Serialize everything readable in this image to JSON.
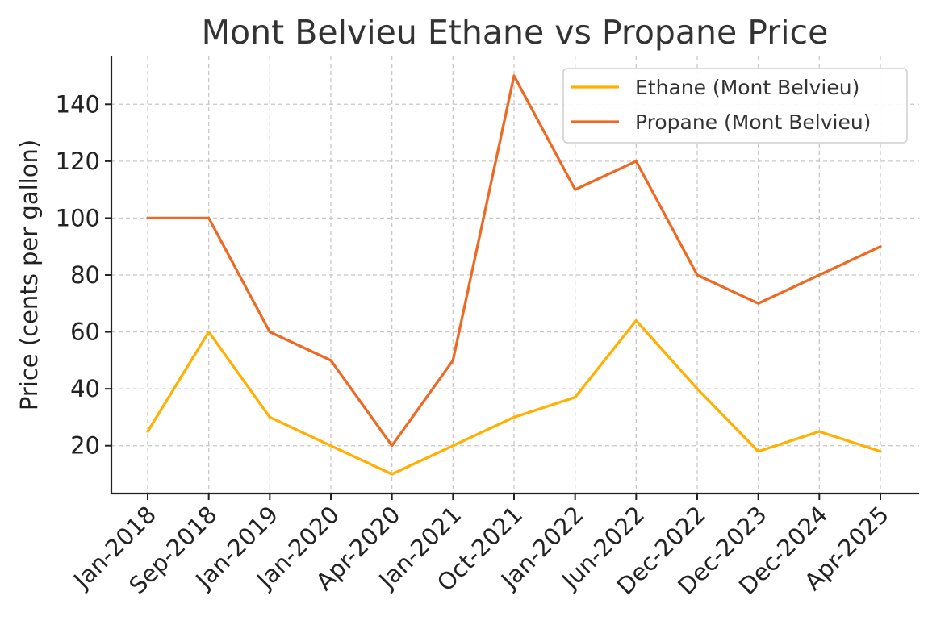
{
  "chart_data": {
    "type": "line",
    "title": "Mont Belvieu Ethane vs Propane Price",
    "xlabel": "",
    "ylabel": "Price (cents per gallon)",
    "categories": [
      "Jan-2018",
      "Sep-2018",
      "Jan-2019",
      "Jan-2020",
      "Apr-2020",
      "Jan-2021",
      "Oct-2021",
      "Jan-2022",
      "Jun-2022",
      "Dec-2022",
      "Dec-2023",
      "Dec-2024",
      "Apr-2025"
    ],
    "yticks": [
      20,
      40,
      60,
      80,
      100,
      120,
      140
    ],
    "ylim": [
      3.2,
      156.8
    ],
    "grid": true,
    "legend_position": "top-right",
    "series": [
      {
        "name": "Ethane (Mont Belvieu)",
        "color": "#FFB000",
        "values": [
          25,
          60,
          30,
          20,
          10,
          20,
          30,
          37,
          64,
          40,
          18,
          25,
          18
        ]
      },
      {
        "name": "Propane (Mont Belvieu)",
        "color": "#EE6A24",
        "values": [
          100,
          100,
          60,
          50,
          20,
          50,
          150,
          110,
          120,
          80,
          70,
          80,
          90
        ]
      }
    ]
  }
}
